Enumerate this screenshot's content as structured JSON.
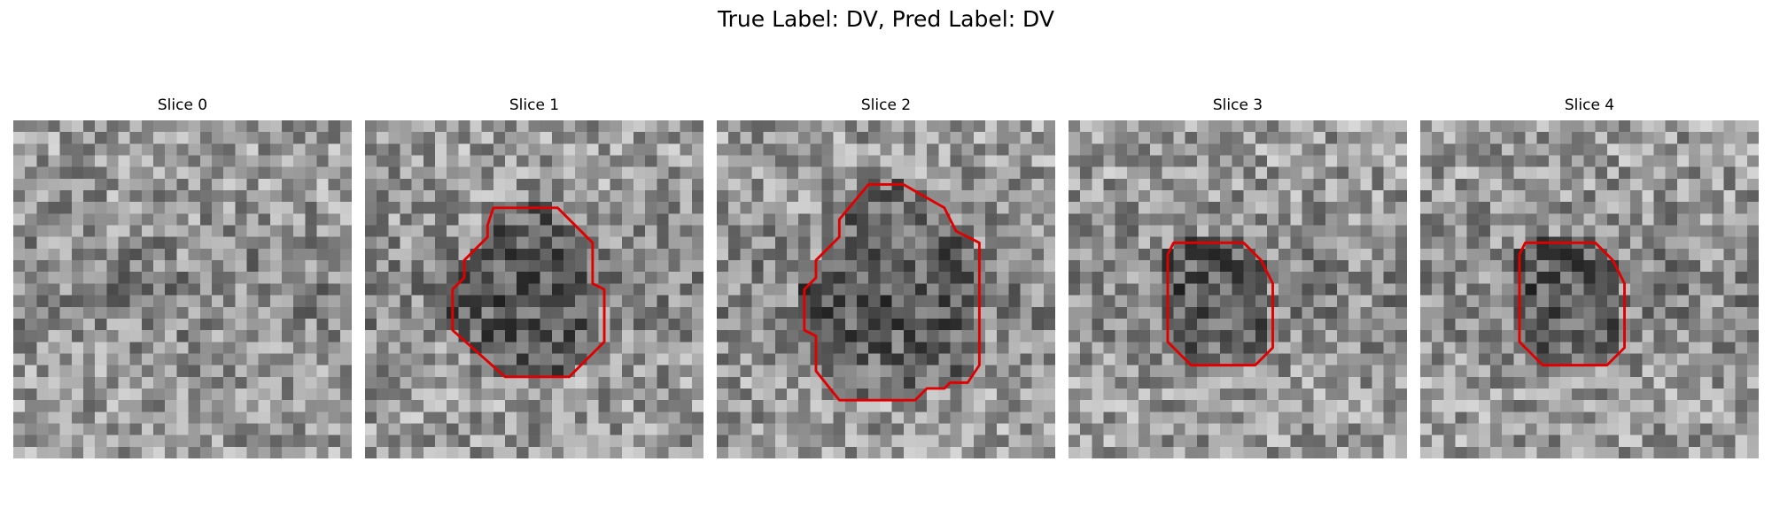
{
  "figure": {
    "title": "True Label: DV, Pred Label: DV",
    "colormap": "gray",
    "contour_color": "#e00000",
    "grid_size": 29
  },
  "slices": [
    {
      "title": "Slice 0",
      "seed": 11,
      "has_contour": false,
      "contour": []
    },
    {
      "title": "Slice 1",
      "seed": 23,
      "has_contour": true,
      "contour": [
        [
          11,
          7.5
        ],
        [
          16.5,
          7.5
        ],
        [
          19.5,
          10.5
        ],
        [
          19.5,
          14
        ],
        [
          20.5,
          14.5
        ],
        [
          20.5,
          19
        ],
        [
          17.5,
          22
        ],
        [
          12,
          22
        ],
        [
          7.5,
          18
        ],
        [
          7.5,
          14.5
        ],
        [
          8.5,
          13.5
        ],
        [
          8.5,
          12
        ],
        [
          10.5,
          10
        ],
        [
          10.5,
          9
        ]
      ]
    },
    {
      "title": "Slice 2",
      "seed": 37,
      "has_contour": true,
      "contour": [
        [
          13,
          5.5
        ],
        [
          16,
          5.5
        ],
        [
          19.5,
          7.5
        ],
        [
          20.5,
          9.5
        ],
        [
          22.5,
          10.5
        ],
        [
          22.5,
          21
        ],
        [
          21.5,
          22.5
        ],
        [
          20,
          22.5
        ],
        [
          19.5,
          23
        ],
        [
          18,
          23
        ],
        [
          17,
          24
        ],
        [
          10.5,
          24
        ],
        [
          8.5,
          21.5
        ],
        [
          8.5,
          18.5
        ],
        [
          7.5,
          18
        ],
        [
          7.5,
          14.5
        ],
        [
          8.5,
          13.5
        ],
        [
          8.5,
          12
        ],
        [
          10.5,
          10
        ],
        [
          10.5,
          8.5
        ]
      ]
    },
    {
      "title": "Slice 3",
      "seed": 51,
      "has_contour": true,
      "contour": [
        [
          9,
          10.5
        ],
        [
          15,
          10.5
        ],
        [
          16.5,
          12
        ],
        [
          17.5,
          14
        ],
        [
          17.5,
          19.5
        ],
        [
          16,
          21
        ],
        [
          10.5,
          21
        ],
        [
          8.5,
          19
        ],
        [
          8.5,
          11.5
        ]
      ]
    },
    {
      "title": "Slice 4",
      "seed": 51,
      "has_contour": true,
      "contour": [
        [
          9,
          10.5
        ],
        [
          15,
          10.5
        ],
        [
          16.5,
          12
        ],
        [
          17.5,
          14
        ],
        [
          17.5,
          19.5
        ],
        [
          16,
          21
        ],
        [
          10.5,
          21
        ],
        [
          8.5,
          19
        ],
        [
          8.5,
          11.5
        ]
      ]
    }
  ]
}
